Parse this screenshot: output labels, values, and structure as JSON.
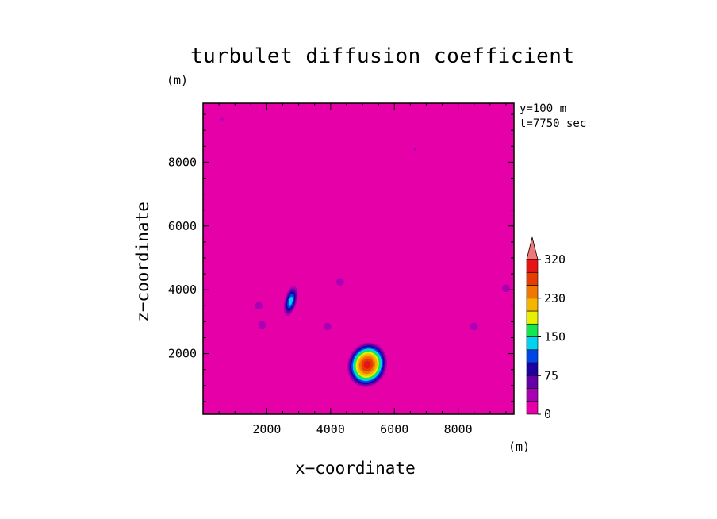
{
  "chart_data": {
    "type": "heatmap",
    "title": "turbulet diffusion coefficient",
    "xlabel": "x−coordinate",
    "ylabel": "z−coordinate",
    "x_unit": "(m)",
    "y_unit": "(m)",
    "annotations": [
      "y=100 m",
      "t=7750 sec"
    ],
    "xlim": [
      0,
      9750
    ],
    "ylim": [
      100,
      9850
    ],
    "x_ticks": [
      2000,
      4000,
      6000,
      8000
    ],
    "y_ticks": [
      2000,
      4000,
      6000,
      8000
    ],
    "x_tick_labels": [
      "2000",
      "4000",
      "6000",
      "8000"
    ],
    "y_tick_labels": [
      "2000",
      "4000",
      "6000",
      "8000"
    ],
    "colorbar": {
      "levels": [
        0,
        25,
        50,
        75,
        100,
        125,
        150,
        175,
        200,
        230,
        260,
        290,
        320
      ],
      "tick_values": [
        0,
        75,
        150,
        230,
        320
      ],
      "tick_labels": [
        "0",
        "75",
        "150",
        "230",
        "320"
      ],
      "colors": [
        "#e600a8",
        "#aa00b4",
        "#6400a6",
        "#1e00a0",
        "#0046e6",
        "#00d2f0",
        "#14e650",
        "#e6f000",
        "#f5b400",
        "#f07800",
        "#e63c00",
        "#e61414",
        "#f07878"
      ],
      "extend": "max"
    },
    "features": [
      {
        "kind": "blob",
        "x": 5150,
        "z": 1650,
        "rx": 650,
        "rz": 750,
        "peak": 300
      },
      {
        "kind": "streak",
        "x": 2750,
        "z": 3650,
        "rx": 220,
        "rz": 550,
        "peak": 140
      },
      {
        "kind": "spot",
        "x": 1750,
        "z": 3500,
        "peak": 40
      },
      {
        "kind": "spot",
        "x": 1850,
        "z": 2900,
        "peak": 40
      },
      {
        "kind": "spot",
        "x": 4300,
        "z": 4250,
        "peak": 25
      },
      {
        "kind": "spot",
        "x": 9500,
        "z": 4050,
        "peak": 25
      },
      {
        "kind": "spot",
        "x": 8500,
        "z": 2850,
        "peak": 25
      },
      {
        "kind": "spot",
        "x": 3900,
        "z": 2850,
        "peak": 25
      },
      {
        "kind": "streak",
        "x": 6650,
        "z": 8400,
        "rx": 350,
        "rz": 80,
        "peak": 25
      },
      {
        "kind": "streak",
        "x": 600,
        "z": 9350,
        "rx": 400,
        "rz": 70,
        "peak": 25
      }
    ]
  }
}
